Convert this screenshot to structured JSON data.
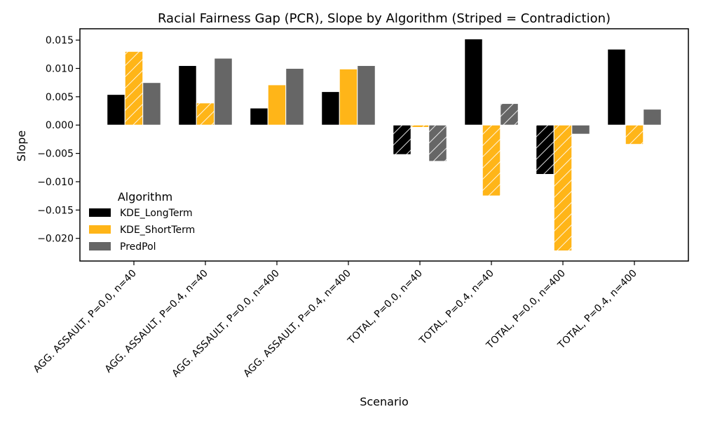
{
  "chart_data": {
    "type": "bar",
    "title": "Racial Fairness Gap (PCR), Slope by Algorithm (Striped = Contradiction)",
    "xlabel": "Scenario",
    "ylabel": "Slope",
    "ylim": [
      -0.024,
      0.017
    ],
    "yticks": [
      -0.02,
      -0.015,
      -0.01,
      -0.005,
      0.0,
      0.005,
      0.01,
      0.015
    ],
    "ytick_labels": [
      "−0.020",
      "−0.015",
      "−0.010",
      "−0.005",
      "0.000",
      "0.005",
      "0.010",
      "0.015"
    ],
    "categories": [
      "AGG. ASSAULT, P=0.0, n=40",
      "AGG. ASSAULT, P=0.4, n=40",
      "AGG. ASSAULT, P=0.0, n=400",
      "AGG. ASSAULT, P=0.4, n=400",
      "TOTAL, P=0.0, n=40",
      "TOTAL, P=0.4, n=40",
      "TOTAL, P=0.0, n=400",
      "TOTAL, P=0.4, n=400"
    ],
    "series": [
      {
        "name": "KDE_LongTerm",
        "color": "#000000",
        "values": [
          0.0054,
          0.0105,
          0.003,
          0.0059,
          -0.0052,
          0.0152,
          -0.0087,
          0.0134
        ],
        "striped": [
          false,
          false,
          false,
          false,
          true,
          false,
          true,
          false
        ]
      },
      {
        "name": "KDE_ShortTerm",
        "color": "#FFB518",
        "values": [
          0.013,
          0.0039,
          0.0071,
          0.0099,
          -0.0004,
          -0.0125,
          -0.0222,
          -0.0034
        ],
        "striped": [
          true,
          true,
          false,
          false,
          true,
          true,
          true,
          true
        ]
      },
      {
        "name": "PredPol",
        "color": "#666666",
        "values": [
          0.0075,
          0.0118,
          0.01,
          0.0105,
          -0.0064,
          0.0038,
          -0.0016,
          0.0028
        ],
        "striped": [
          false,
          false,
          false,
          false,
          true,
          true,
          false,
          false
        ]
      }
    ],
    "legend": {
      "title": "Algorithm",
      "position": "lower-left"
    }
  }
}
